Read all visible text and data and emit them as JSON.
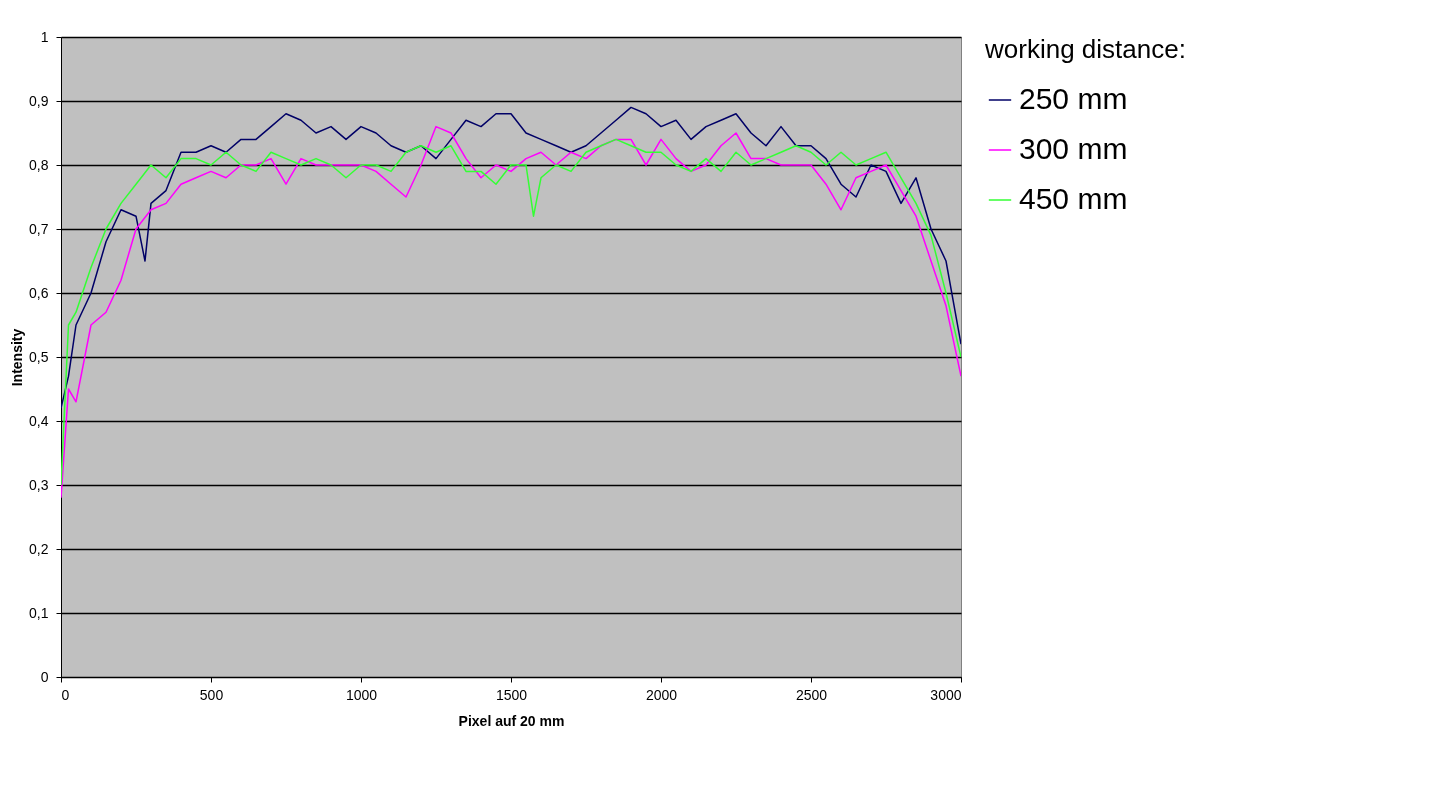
{
  "chart_data": {
    "type": "line",
    "xlabel": "Pixel auf 20 mm",
    "ylabel": "Intensity",
    "legend_title": "working distance:",
    "legend": "right",
    "grid": "y",
    "line_style": "solid",
    "xlim": [
      0,
      3000
    ],
    "xticks": [
      0,
      500,
      1000,
      1500,
      2000,
      2500,
      3000
    ],
    "ylim": [
      0,
      1
    ],
    "yticks": [
      0,
      {
        "value": 0.1,
        "label": "0,1"
      },
      {
        "value": 0.2,
        "label": "0,2"
      },
      {
        "value": 0.3,
        "label": "0,3"
      },
      {
        "value": 0.4,
        "label": "0,4"
      },
      {
        "value": 0.5,
        "label": "0,5"
      },
      {
        "value": 0.6,
        "label": "0,6"
      },
      {
        "value": 0.7,
        "label": "0,7"
      },
      {
        "value": 0.8,
        "label": "0,8"
      },
      {
        "value": 0.9,
        "label": "0,9"
      },
      1
    ],
    "series": [
      {
        "name": "250 mm",
        "color": "#000066",
        "x": [
          0,
          25,
          50,
          100,
          150,
          200,
          250,
          280,
          300,
          350,
          400,
          450,
          500,
          550,
          600,
          650,
          700,
          750,
          800,
          850,
          900,
          950,
          1000,
          1050,
          1100,
          1150,
          1200,
          1250,
          1300,
          1350,
          1400,
          1450,
          1500,
          1550,
          1600,
          1650,
          1700,
          1750,
          1800,
          1850,
          1900,
          1950,
          2000,
          2050,
          2100,
          2150,
          2200,
          2250,
          2300,
          2350,
          2400,
          2450,
          2500,
          2550,
          2600,
          2650,
          2700,
          2750,
          2800,
          2850,
          2900,
          2950,
          3000
        ],
        "values": [
          0.42,
          0.47,
          0.55,
          0.6,
          0.68,
          0.73,
          0.72,
          0.65,
          0.74,
          0.76,
          0.82,
          0.82,
          0.83,
          0.82,
          0.84,
          0.84,
          0.86,
          0.88,
          0.87,
          0.85,
          0.86,
          0.84,
          0.86,
          0.85,
          0.83,
          0.82,
          0.83,
          0.81,
          0.84,
          0.87,
          0.86,
          0.88,
          0.88,
          0.85,
          0.84,
          0.83,
          0.82,
          0.83,
          0.85,
          0.87,
          0.89,
          0.88,
          0.86,
          0.87,
          0.84,
          0.86,
          0.87,
          0.88,
          0.85,
          0.83,
          0.86,
          0.83,
          0.83,
          0.81,
          0.77,
          0.75,
          0.8,
          0.79,
          0.74,
          0.78,
          0.7,
          0.65,
          0.52
        ]
      },
      {
        "name": "300 mm",
        "color": "#ff00ff",
        "x": [
          0,
          25,
          50,
          100,
          150,
          200,
          250,
          300,
          350,
          400,
          450,
          500,
          550,
          600,
          650,
          700,
          750,
          800,
          850,
          900,
          950,
          1000,
          1050,
          1100,
          1150,
          1200,
          1250,
          1300,
          1350,
          1400,
          1450,
          1500,
          1550,
          1600,
          1650,
          1700,
          1750,
          1800,
          1850,
          1900,
          1950,
          2000,
          2050,
          2100,
          2150,
          2200,
          2250,
          2300,
          2350,
          2400,
          2450,
          2500,
          2550,
          2600,
          2650,
          2700,
          2750,
          2800,
          2850,
          2900,
          2950,
          3000
        ],
        "values": [
          0.28,
          0.45,
          0.43,
          0.55,
          0.57,
          0.62,
          0.7,
          0.73,
          0.74,
          0.77,
          0.78,
          0.79,
          0.78,
          0.8,
          0.8,
          0.81,
          0.77,
          0.81,
          0.8,
          0.8,
          0.8,
          0.8,
          0.79,
          0.77,
          0.75,
          0.8,
          0.86,
          0.85,
          0.81,
          0.78,
          0.8,
          0.79,
          0.81,
          0.82,
          0.8,
          0.82,
          0.81,
          0.83,
          0.84,
          0.84,
          0.8,
          0.84,
          0.81,
          0.79,
          0.8,
          0.83,
          0.85,
          0.81,
          0.81,
          0.8,
          0.8,
          0.8,
          0.77,
          0.73,
          0.78,
          0.79,
          0.8,
          0.76,
          0.72,
          0.65,
          0.58,
          0.47
        ]
      },
      {
        "name": "450 mm",
        "color": "#33ff33",
        "x": [
          0,
          25,
          50,
          100,
          150,
          200,
          250,
          300,
          350,
          400,
          450,
          500,
          550,
          600,
          650,
          700,
          750,
          800,
          850,
          900,
          950,
          1000,
          1050,
          1100,
          1150,
          1200,
          1250,
          1300,
          1350,
          1400,
          1450,
          1500,
          1550,
          1575,
          1600,
          1650,
          1700,
          1750,
          1800,
          1850,
          1900,
          1950,
          2000,
          2050,
          2100,
          2150,
          2200,
          2250,
          2300,
          2350,
          2400,
          2450,
          2500,
          2550,
          2600,
          2650,
          2700,
          2750,
          2800,
          2850,
          2900,
          2950,
          3000
        ],
        "values": [
          0.3,
          0.55,
          0.57,
          0.64,
          0.7,
          0.74,
          0.77,
          0.8,
          0.78,
          0.81,
          0.81,
          0.8,
          0.82,
          0.8,
          0.79,
          0.82,
          0.81,
          0.8,
          0.81,
          0.8,
          0.78,
          0.8,
          0.8,
          0.79,
          0.82,
          0.83,
          0.82,
          0.83,
          0.79,
          0.79,
          0.77,
          0.8,
          0.8,
          0.72,
          0.78,
          0.8,
          0.79,
          0.82,
          0.83,
          0.84,
          0.83,
          0.82,
          0.82,
          0.8,
          0.79,
          0.81,
          0.79,
          0.82,
          0.8,
          0.81,
          0.82,
          0.83,
          0.82,
          0.8,
          0.82,
          0.8,
          0.81,
          0.82,
          0.78,
          0.74,
          0.69,
          0.6,
          0.5
        ]
      }
    ]
  }
}
